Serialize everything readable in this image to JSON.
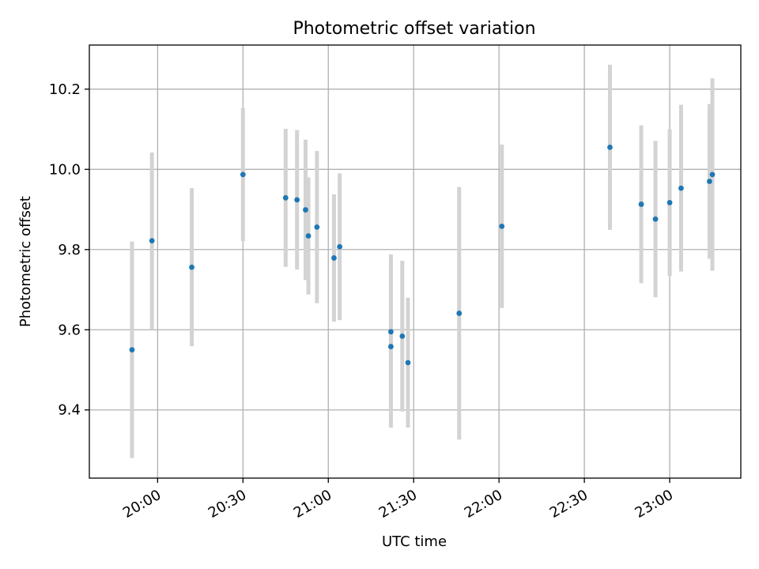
{
  "chart_data": {
    "type": "scatter",
    "title": "Photometric offset variation",
    "xlabel": "UTC time",
    "ylabel": "Photometric offset",
    "x_ticks": [
      "20:00",
      "20:30",
      "21:00",
      "21:30",
      "22:00",
      "22:30",
      "23:00"
    ],
    "y_ticks": [
      "9.4",
      "9.6",
      "9.8",
      "10.0",
      "10.2"
    ],
    "xlim": [
      "19:36",
      "23:25"
    ],
    "ylim": [
      9.23,
      10.31
    ],
    "grid": true,
    "legend": "none",
    "colors": {
      "points": "#1f77b4",
      "errorbars": "#d3d3d3",
      "grid": "#b0b0b0"
    },
    "points": [
      {
        "x": "19:51",
        "y": 9.55,
        "yerr": 0.27
      },
      {
        "x": "19:58",
        "y": 9.822,
        "yerr": 0.22
      },
      {
        "x": "20:12",
        "y": 9.756,
        "yerr": 0.197
      },
      {
        "x": "20:30",
        "y": 9.987,
        "yerr": 0.166
      },
      {
        "x": "20:45",
        "y": 9.929,
        "yerr": 0.172
      },
      {
        "x": "20:49",
        "y": 9.924,
        "yerr": 0.174
      },
      {
        "x": "20:52",
        "y": 9.899,
        "yerr": 0.175
      },
      {
        "x": "20:53",
        "y": 9.834,
        "yerr": 0.146
      },
      {
        "x": "20:56",
        "y": 9.856,
        "yerr": 0.19
      },
      {
        "x": "21:02",
        "y": 9.779,
        "yerr": 0.159
      },
      {
        "x": "21:04",
        "y": 9.807,
        "yerr": 0.183
      },
      {
        "x": "21:22",
        "y": 9.558,
        "yerr": 0.202
      },
      {
        "x": "21:22",
        "y": 9.595,
        "yerr": 0.193
      },
      {
        "x": "21:26",
        "y": 9.584,
        "yerr": 0.188
      },
      {
        "x": "21:28",
        "y": 9.518,
        "yerr": 0.162
      },
      {
        "x": "21:46",
        "y": 9.641,
        "yerr": 0.315
      },
      {
        "x": "22:01",
        "y": 9.858,
        "yerr": 0.204
      },
      {
        "x": "22:39",
        "y": 10.055,
        "yerr": 0.206
      },
      {
        "x": "22:50",
        "y": 9.913,
        "yerr": 0.197
      },
      {
        "x": "22:55",
        "y": 9.876,
        "yerr": 0.195
      },
      {
        "x": "23:00",
        "y": 9.917,
        "yerr": 0.183
      },
      {
        "x": "23:04",
        "y": 9.953,
        "yerr": 0.208
      },
      {
        "x": "23:14",
        "y": 9.97,
        "yerr": 0.193
      },
      {
        "x": "23:15",
        "y": 9.987,
        "yerr": 0.24
      }
    ]
  }
}
